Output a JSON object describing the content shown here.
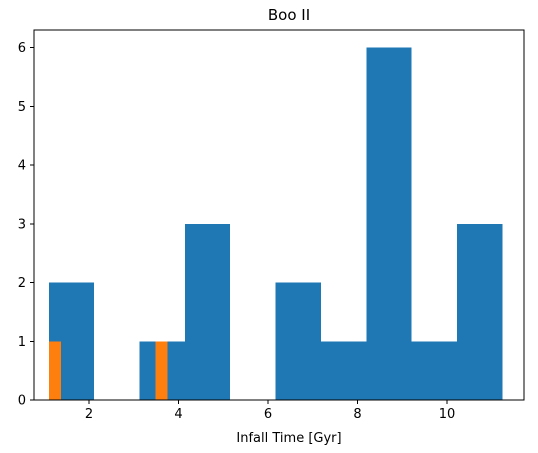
{
  "chart_data": {
    "type": "bar",
    "title": "Boo II",
    "xlabel": "Infall Time [Gyr]",
    "ylabel": "",
    "xlim": [
      0.77,
      11.72
    ],
    "ylim": [
      0,
      6.3
    ],
    "xticks": [
      2,
      4,
      6,
      8,
      10
    ],
    "yticks": [
      0,
      1,
      2,
      3,
      4,
      5,
      6
    ],
    "grid": false,
    "series": [
      {
        "color": "#1f77b4",
        "bins": [
          {
            "x0": 1.1,
            "x1": 2.11,
            "value": 2
          },
          {
            "x0": 2.11,
            "x1": 3.13,
            "value": 0
          },
          {
            "x0": 3.13,
            "x1": 4.14,
            "value": 1
          },
          {
            "x0": 4.14,
            "x1": 5.15,
            "value": 3
          },
          {
            "x0": 5.15,
            "x1": 6.17,
            "value": 0
          },
          {
            "x0": 6.17,
            "x1": 7.18,
            "value": 2
          },
          {
            "x0": 7.18,
            "x1": 8.2,
            "value": 1
          },
          {
            "x0": 8.2,
            "x1": 9.21,
            "value": 6
          },
          {
            "x0": 9.21,
            "x1": 10.22,
            "value": 1
          },
          {
            "x0": 10.22,
            "x1": 11.24,
            "value": 3
          }
        ]
      },
      {
        "color": "#ff7f0e",
        "bins": [
          {
            "x0": 1.1,
            "x1": 1.37,
            "value": 1
          },
          {
            "x0": 1.37,
            "x1": 1.63,
            "value": 0
          },
          {
            "x0": 1.63,
            "x1": 1.9,
            "value": 0
          },
          {
            "x0": 1.9,
            "x1": 2.16,
            "value": 0
          },
          {
            "x0": 2.16,
            "x1": 2.43,
            "value": 0
          },
          {
            "x0": 2.43,
            "x1": 2.69,
            "value": 0
          },
          {
            "x0": 2.69,
            "x1": 2.96,
            "value": 0
          },
          {
            "x0": 2.96,
            "x1": 3.22,
            "value": 0
          },
          {
            "x0": 3.22,
            "x1": 3.49,
            "value": 0
          },
          {
            "x0": 3.49,
            "x1": 3.75,
            "value": 1
          }
        ]
      }
    ]
  }
}
